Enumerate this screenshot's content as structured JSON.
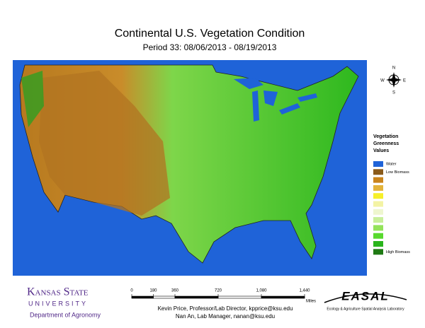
{
  "header": {
    "title": "Continental U.S. Vegetation Condition",
    "subtitle": "Period 33: 08/06/2013 - 08/19/2013"
  },
  "compass": {
    "north": "N",
    "south": "S",
    "east": "E",
    "west": "W"
  },
  "legend": {
    "title_lines": [
      "Vegetation",
      "Greenness",
      "Values"
    ],
    "items": [
      {
        "color": "#1f63d8",
        "label": "Water"
      },
      {
        "color": "#8a5a1a",
        "label": "Low Biomass"
      },
      {
        "color": "#c9841c"
      },
      {
        "color": "#e3b33a"
      },
      {
        "color": "#f6f02a"
      },
      {
        "color": "#f3f3a4"
      },
      {
        "color": "#eef6cf"
      },
      {
        "color": "#c8ef9a"
      },
      {
        "color": "#93e35a"
      },
      {
        "color": "#58d92e"
      },
      {
        "color": "#2ab51c"
      },
      {
        "color": "#1f7a14",
        "label": "High Biomass"
      }
    ]
  },
  "scale": {
    "ticks": [
      0,
      180,
      360,
      720,
      {
        "value": 1080,
        "label": "1,080"
      },
      {
        "value": 1440,
        "label": "1,440"
      }
    ],
    "unit": "Miles"
  },
  "footer": {
    "university": "Kansas State",
    "university_sub": "UNIVERSITY",
    "department": "Department of Agronomy",
    "credit_1": "Kevin Price, Professor/Lab Director, kpprice@ksu.edu",
    "credit_2": "Nan An, Lab Manager, nanan@ksu.edu",
    "lab_logo": "EASAL",
    "lab_name": "Ecology & Agriculture Spatial Analysis Laboratory"
  }
}
